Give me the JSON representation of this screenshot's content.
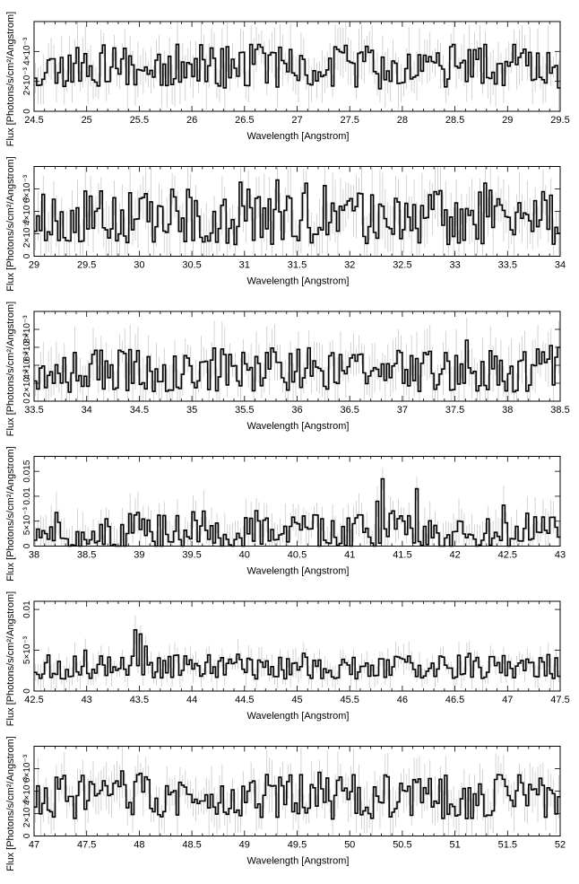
{
  "chart_data": [
    {
      "type": "line",
      "xlabel": "Wavelength [Angstrom]",
      "ylabel": "Flux [Photons/s/cm²/Angstrom]",
      "xlim": [
        24.5,
        29.5
      ],
      "ylim": [
        0,
        0.006
      ],
      "xticks": [
        "24.5",
        "25",
        "25.5",
        "26",
        "26.5",
        "27",
        "27.5",
        "28",
        "28.5",
        "29",
        "29.5"
      ],
      "yticks": [
        {
          "v": 0,
          "label": "0"
        },
        {
          "v": 0.002,
          "label": "2×10⁻³"
        },
        {
          "v": 0.004,
          "label": "4×10⁻³"
        }
      ],
      "ymin_val": 0.0015,
      "ymax_val": 0.0045,
      "ybase": 0.003,
      "step": 0.025,
      "seed": 11,
      "peaks": []
    },
    {
      "type": "line",
      "xlabel": "Wavelength [Angstrom]",
      "ylabel": "Flux [Photons/s/cm²/Angstrom]",
      "xlim": [
        29,
        34
      ],
      "ylim": [
        0,
        0.008
      ],
      "xticks": [
        "29",
        "29.5",
        "30",
        "30.5",
        "31",
        "31.5",
        "32",
        "32.5",
        "33",
        "33.5",
        "34"
      ],
      "yticks": [
        {
          "v": 0,
          "label": "0"
        },
        {
          "v": 0.002,
          "label": "2×10⁻³"
        },
        {
          "v": 0.004,
          "label": "4×10⁻³"
        },
        {
          "v": 0.006,
          "label": "6×10⁻³"
        }
      ],
      "ymin_val": 0.0015,
      "ymax_val": 0.0065,
      "ybase": 0.0035,
      "step": 0.025,
      "seed": 23,
      "peaks": []
    },
    {
      "type": "line",
      "xlabel": "Wavelength [Angstrom]",
      "ylabel": "Flux [Photons/s/cm²/Angstrom]",
      "xlim": [
        33.5,
        38.5
      ],
      "ylim": [
        0,
        0.01
      ],
      "xticks": [
        "33.5",
        "34",
        "34.5",
        "35",
        "35.5",
        "36",
        "36.5",
        "37",
        "37.5",
        "38",
        "38.5"
      ],
      "yticks": [
        {
          "v": 0,
          "label": "0"
        },
        {
          "v": 0.002,
          "label": "2×10⁻³"
        },
        {
          "v": 0.004,
          "label": "4×10⁻³"
        },
        {
          "v": 0.006,
          "label": "6×10⁻³"
        },
        {
          "v": 0.008,
          "label": "8×10⁻³"
        }
      ],
      "ymin_val": 0.001,
      "ymax_val": 0.006,
      "ybase": 0.0035,
      "step": 0.025,
      "seed": 37,
      "peaks": [
        {
          "x": 37.6,
          "v": 0.0068
        },
        {
          "x": 38.4,
          "v": 0.0062
        }
      ]
    },
    {
      "type": "line",
      "xlabel": "Wavelength [Angstrom]",
      "ylabel": "Flux [Photons/s/cm²/Angstrom]",
      "xlim": [
        38,
        43
      ],
      "ylim": [
        0,
        0.018
      ],
      "xticks": [
        "38",
        "38.5",
        "39",
        "39.5",
        "40",
        "40.5",
        "41",
        "41.5",
        "42",
        "42.5",
        "43"
      ],
      "yticks": [
        {
          "v": 0,
          "label": "0"
        },
        {
          "v": 0.005,
          "label": "5×10⁻³"
        },
        {
          "v": 0.01,
          "label": "0.01"
        },
        {
          "v": 0.015,
          "label": "0.015"
        }
      ],
      "ymin_val": 0.0,
      "ymax_val": 0.0075,
      "ybase": 0.003,
      "step": 0.025,
      "seed": 51,
      "peaks": [
        {
          "x": 41.3,
          "v": 0.0135
        },
        {
          "x": 41.62,
          "v": 0.0115
        },
        {
          "x": 41.25,
          "v": 0.009
        },
        {
          "x": 42.45,
          "v": 0.0082
        }
      ]
    },
    {
      "type": "line",
      "xlabel": "Wavelength [Angstrom]",
      "ylabel": "Flux [Photons/s/cm²/Angstrom]",
      "xlim": [
        42.5,
        47.5
      ],
      "ylim": [
        0,
        0.011
      ],
      "xticks": [
        "42.5",
        "43",
        "43.5",
        "44",
        "44.5",
        "45",
        "45.5",
        "46",
        "46.5",
        "47",
        "47.5"
      ],
      "yticks": [
        {
          "v": 0,
          "label": "0"
        },
        {
          "v": 0.005,
          "label": "5×10⁻³"
        },
        {
          "v": 0.01,
          "label": "0.01"
        }
      ],
      "ymin_val": 0.0015,
      "ymax_val": 0.0045,
      "ybase": 0.003,
      "step": 0.025,
      "seed": 67,
      "peaks": [
        {
          "x": 43.45,
          "v": 0.0075
        },
        {
          "x": 43.5,
          "v": 0.007
        },
        {
          "x": 43.55,
          "v": 0.0055
        },
        {
          "x": 42.97,
          "v": 0.005
        }
      ]
    },
    {
      "type": "line",
      "xlabel": "Wavelength [Angstrom]",
      "ylabel": "Flux [Photons/s/cm²/Angstrom]",
      "xlim": [
        47,
        52
      ],
      "ylim": [
        0,
        0.008
      ],
      "xticks": [
        "47",
        "47.5",
        "48",
        "48.5",
        "49",
        "49.5",
        "50",
        "50.5",
        "51",
        "51.5",
        "52"
      ],
      "yticks": [
        {
          "v": 0,
          "label": "0"
        },
        {
          "v": 0.002,
          "label": "2×10⁻³"
        },
        {
          "v": 0.004,
          "label": "4×10⁻³"
        },
        {
          "v": 0.006,
          "label": "6×10⁻³"
        }
      ],
      "ymin_val": 0.0015,
      "ymax_val": 0.0055,
      "ybase": 0.0035,
      "step": 0.025,
      "seed": 83,
      "peaks": [
        {
          "x": 47.82,
          "v": 0.0058
        }
      ]
    }
  ]
}
